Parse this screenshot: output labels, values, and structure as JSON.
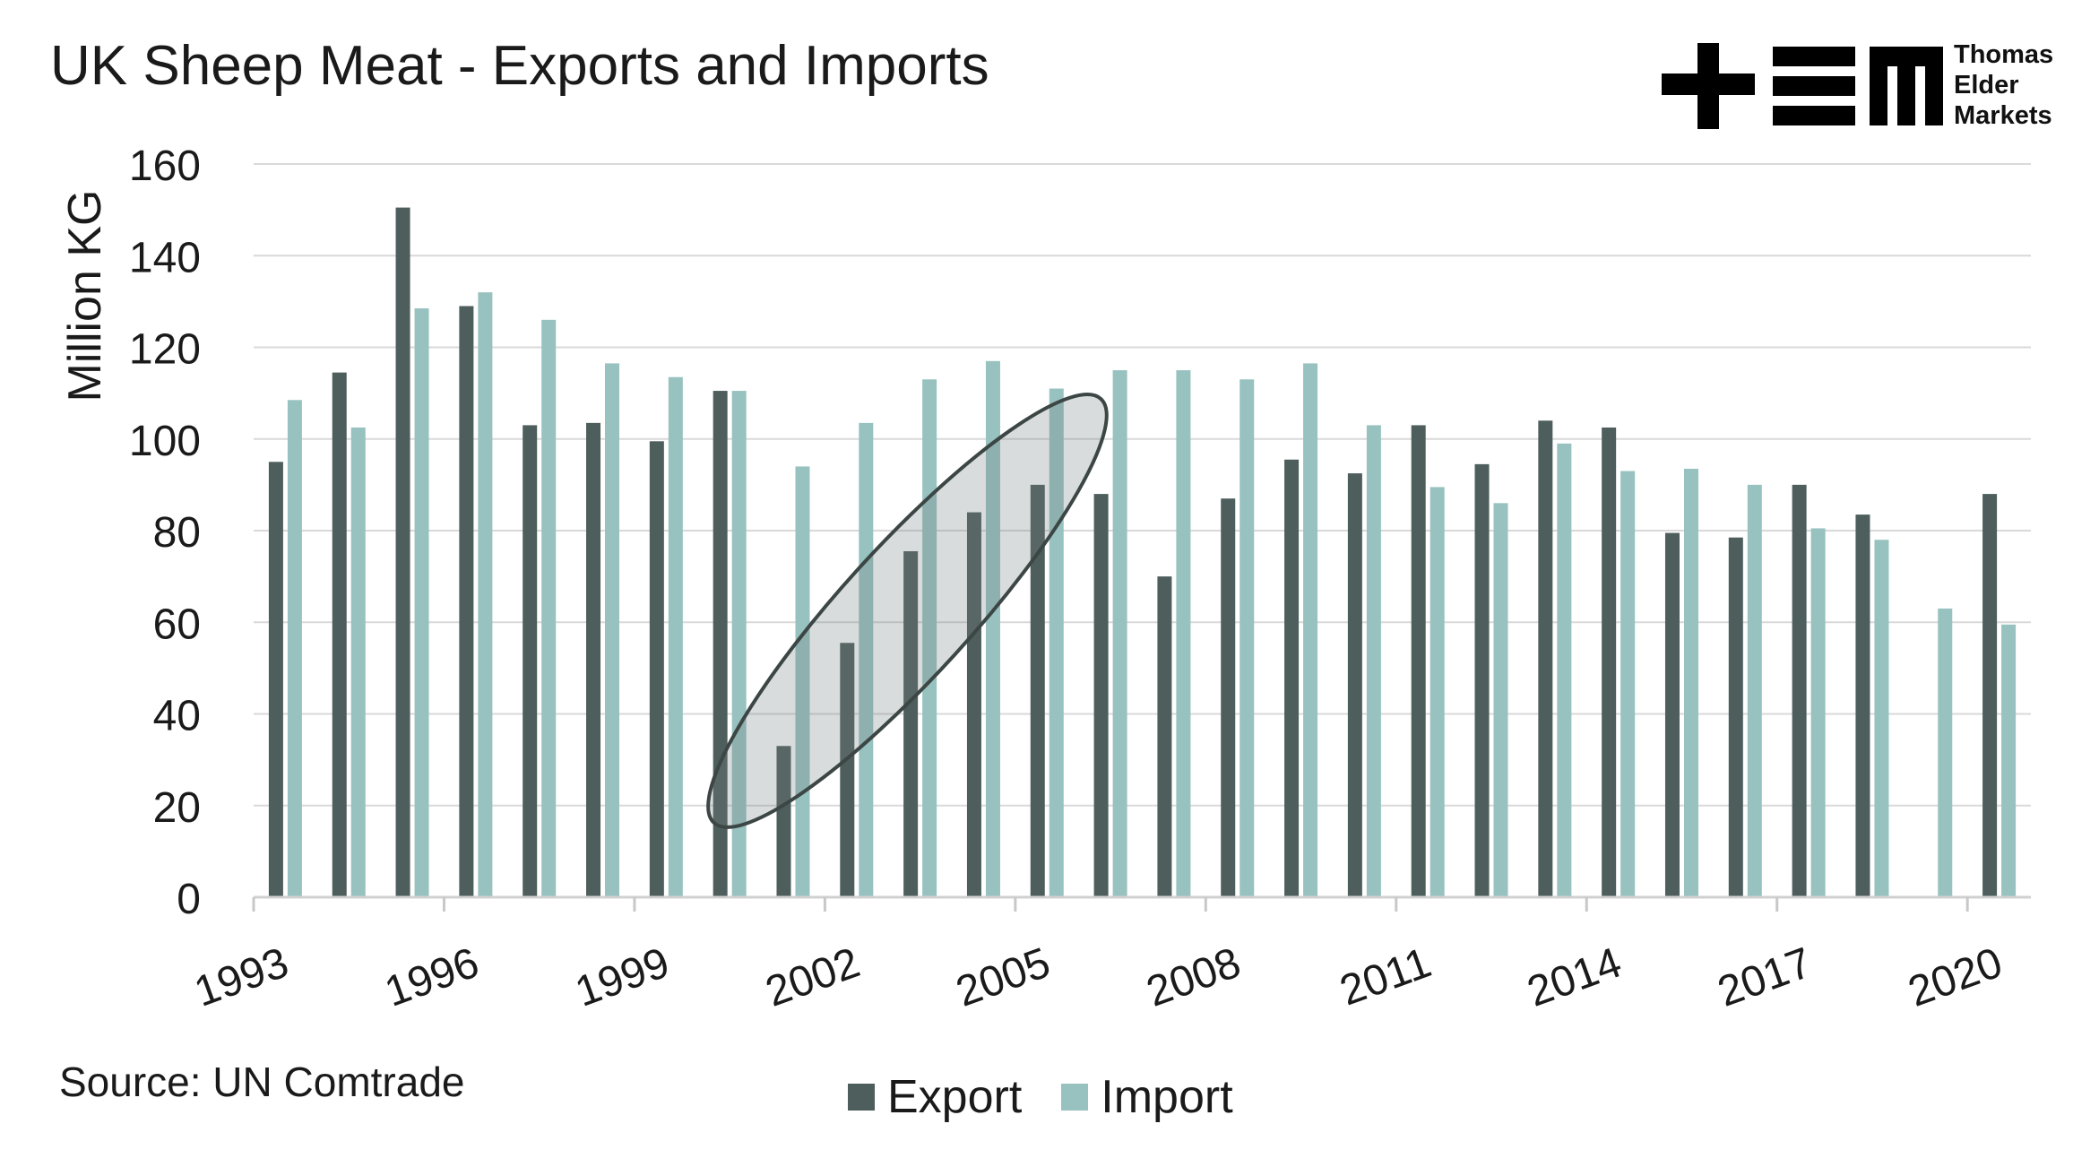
{
  "chart_data": {
    "type": "bar",
    "title": "UK Sheep Meat - Exports and Imports",
    "ylabel": "Million KG",
    "xlabel": "",
    "ylim": [
      0,
      160
    ],
    "yticks": [
      0,
      20,
      40,
      60,
      80,
      100,
      120,
      140,
      160
    ],
    "xtick_labels": [
      "1993",
      "1996",
      "1999",
      "2002",
      "2005",
      "2008",
      "2011",
      "2014",
      "2017",
      "2020"
    ],
    "grid": "horizontal",
    "legend_position": "bottom",
    "categories": [
      1993,
      1994,
      1995,
      1996,
      1997,
      1998,
      1999,
      2000,
      2001,
      2002,
      2003,
      2004,
      2005,
      2006,
      2007,
      2008,
      2009,
      2010,
      2011,
      2012,
      2013,
      2014,
      2015,
      2016,
      2017,
      2018,
      2019,
      2020
    ],
    "series": [
      {
        "name": "Export",
        "color": "#4d5e5c",
        "values": [
          95,
          114.5,
          150.5,
          129,
          103,
          103.5,
          99.5,
          110.5,
          33,
          55.5,
          75.5,
          84,
          90,
          88,
          70,
          87,
          95.5,
          92.5,
          103,
          94.5,
          104,
          102.5,
          79.5,
          78.5,
          90,
          83.5,
          null,
          88
        ]
      },
      {
        "name": "Import",
        "color": "#97c2bf",
        "values": [
          108.5,
          102.5,
          128.5,
          132,
          126,
          116.5,
          113.5,
          110.5,
          94,
          103.5,
          113,
          117,
          111,
          115,
          115,
          113,
          116.5,
          103,
          89.5,
          86,
          99,
          93,
          93.5,
          90,
          80.5,
          78,
          63,
          59.5
        ]
      }
    ],
    "annotations": [
      {
        "type": "ellipse",
        "description": "highlight",
        "years": [
          2000,
          2005
        ],
        "values": [
          20,
          105
        ]
      }
    ]
  },
  "source": "Source: UN Comtrade",
  "logo": {
    "lines": [
      "Thomas",
      "Elder",
      "Markets"
    ]
  }
}
